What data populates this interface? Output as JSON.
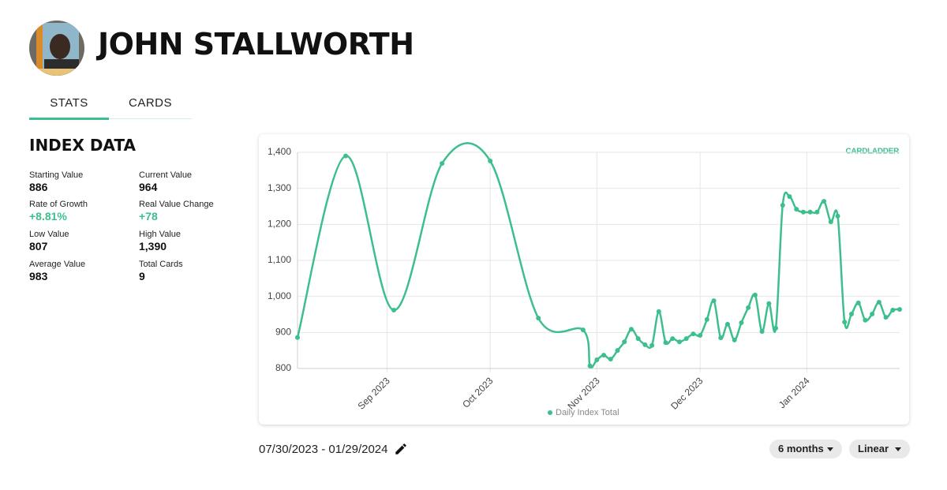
{
  "header": {
    "title": "JOHN STALLWORTH"
  },
  "tabs": [
    "STATS",
    "CARDS"
  ],
  "index_data": {
    "title": "INDEX DATA",
    "stats": [
      {
        "label": "Starting Value",
        "value": "886"
      },
      {
        "label": "Current Value",
        "value": "964"
      },
      {
        "label": "Rate of Growth",
        "value": "+8.81%"
      },
      {
        "label": "Real Value Change",
        "value": "+78"
      },
      {
        "label": "Low Value",
        "value": "807"
      },
      {
        "label": "High Value",
        "value": "1,390"
      },
      {
        "label": "Average Value",
        "value": "983"
      },
      {
        "label": "Total Cards",
        "value": "9"
      }
    ]
  },
  "chart_data": {
    "type": "line",
    "watermark": "CARDLADDER",
    "x": [
      7,
      21,
      35,
      49,
      63,
      77,
      90,
      92,
      94,
      96,
      98,
      100,
      102,
      104,
      106,
      108,
      110,
      112,
      114,
      116,
      118,
      120,
      122,
      124,
      126,
      128,
      130,
      132,
      134,
      136,
      138,
      140,
      142,
      144,
      146,
      148,
      150,
      152,
      154,
      156,
      158,
      160,
      162,
      164,
      166,
      168,
      170,
      172,
      174,
      176,
      178,
      180,
      182
    ],
    "series": [
      {
        "name": "Daily Index Total",
        "color": "#3dbf8d",
        "values": [
          886,
          1390,
          962,
          1369,
          1376,
          940,
          907,
          807,
          824,
          837,
          826,
          850,
          874,
          909,
          883,
          866,
          864,
          958,
          872,
          883,
          874,
          883,
          896,
          892,
          936,
          988,
          885,
          923,
          879,
          927,
          969,
          1004,
          903,
          980,
          912,
          1253,
          1277,
          1242,
          1234,
          1234,
          1234,
          1264,
          1207,
          1223,
          929,
          951,
          982,
          934,
          951,
          984,
          942,
          962,
          964
        ]
      }
    ],
    "xlim": [
      7,
      182
    ],
    "xticks": [
      {
        "value": 33,
        "label": "Sep 2023"
      },
      {
        "value": 63,
        "label": "Oct 2023"
      },
      {
        "value": 94,
        "label": "Nov 2023"
      },
      {
        "value": 124,
        "label": "Dec 2023"
      },
      {
        "value": 155,
        "label": "Jan 2024"
      }
    ],
    "ylim": [
      800,
      1400
    ],
    "yticks": [
      800,
      900,
      {
        "value": 1000,
        "label": "1,000"
      },
      {
        "value": 1100,
        "label": "1,100"
      },
      {
        "value": 1200,
        "label": "1,200"
      },
      {
        "value": 1300,
        "label": "1,300"
      },
      {
        "value": 1400,
        "label": "1,400"
      }
    ],
    "grid": true
  },
  "date_range": "07/30/2023 - 01/29/2024",
  "controls": {
    "range": "6 months",
    "scale": "Linear"
  }
}
